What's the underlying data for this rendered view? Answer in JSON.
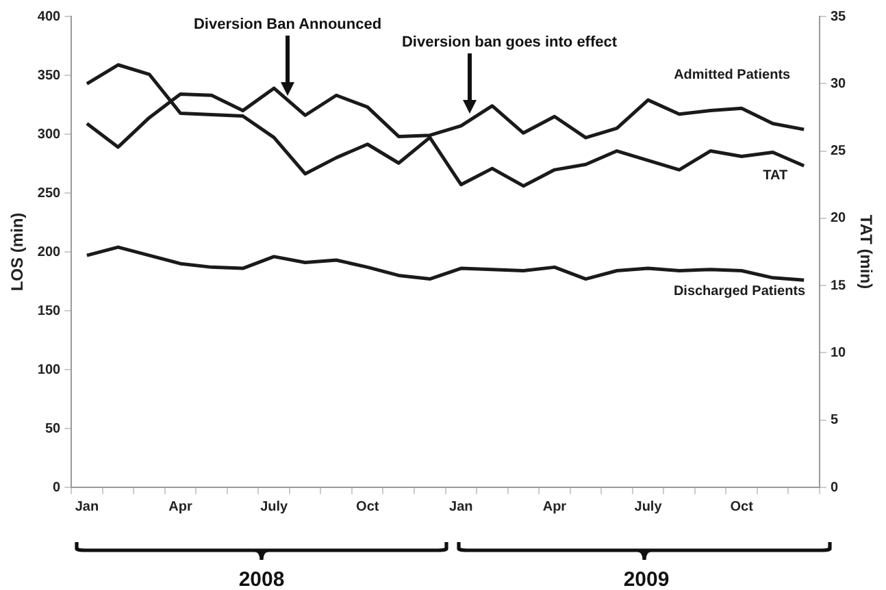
{
  "chart_data": {
    "type": "line",
    "ylabel": "LOS (min)",
    "y2label": "TAT (min)",
    "categories": [
      "Jan",
      null,
      null,
      "Apr",
      null,
      null,
      "July",
      null,
      null,
      "Oct",
      null,
      null,
      "Jan",
      null,
      null,
      "Apr",
      null,
      null,
      "July",
      null,
      null,
      "Oct",
      null,
      null
    ],
    "series": [
      {
        "name": "Admitted Patients",
        "color": "#1a1a1a",
        "values": [
          309,
          289,
          314,
          334,
          333,
          320,
          339,
          316,
          333,
          323,
          298,
          299,
          307,
          324,
          301,
          315,
          297,
          305,
          329,
          317,
          320,
          322,
          309,
          304
        ]
      },
      {
        "name": "TAT",
        "color": "#1a1a1a",
        "axis": "y2",
        "values": [
          30.0,
          31.4,
          30.7,
          27.8,
          27.7,
          27.6,
          26.0,
          23.3,
          24.5,
          25.5,
          24.1,
          26.0,
          22.5,
          23.7,
          22.4,
          23.6,
          24.0,
          25.0,
          24.3,
          23.6,
          25.0,
          24.6,
          24.9,
          23.9
        ]
      },
      {
        "name": "Discharged Patients",
        "color": "#1a1a1a",
        "values": [
          197,
          204,
          197,
          190,
          187,
          186,
          196,
          191,
          193,
          187,
          180,
          177,
          186,
          185,
          184,
          187,
          177,
          184,
          186,
          184,
          185,
          184,
          178,
          176
        ]
      }
    ],
    "ylim": [
      0,
      400
    ],
    "yticks": [
      0,
      50,
      100,
      150,
      200,
      250,
      300,
      350,
      400
    ],
    "y2lim": [
      0,
      35
    ],
    "y2ticks": [
      0,
      5,
      10,
      15,
      20,
      25,
      30,
      35
    ],
    "grid": false,
    "legend": false,
    "marker": "none",
    "line_style": "solid",
    "annotations": [
      "Diversion Ban Announced",
      "Diversion ban goes into effect",
      "2008",
      "2009"
    ]
  }
}
